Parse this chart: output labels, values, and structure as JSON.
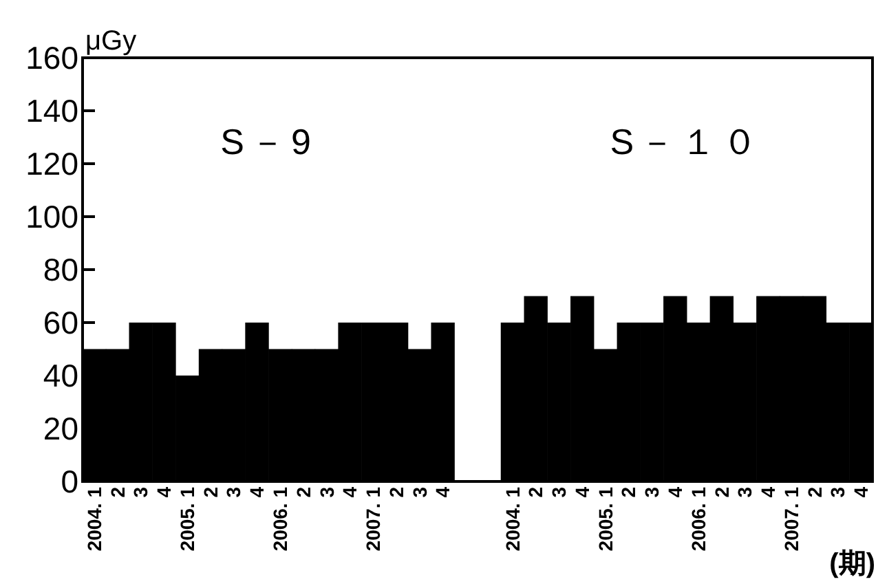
{
  "chart_data": {
    "type": "bar",
    "ylabel": "μGy",
    "xlabel": "(期)",
    "annotations": [
      "S－9",
      "S－１０"
    ],
    "categories": [
      "2004. 1",
      "2",
      "3",
      "4",
      "2005. 1",
      "2",
      "3",
      "4",
      "2006. 1",
      "2",
      "3",
      "4",
      "2007. 1",
      "2",
      "3",
      "4",
      null,
      null,
      "2004. 1",
      "2",
      "3",
      "4",
      "2005. 1",
      "2",
      "3",
      "4",
      "2006. 1",
      "2",
      "3",
      "4",
      "2007. 1",
      "2",
      "3",
      "4"
    ],
    "series": [
      {
        "color": "#000000",
        "values": [
          50,
          50,
          60,
          60,
          40,
          50,
          50,
          60,
          50,
          50,
          50,
          60,
          60,
          60,
          50,
          60,
          null,
          null,
          60,
          70,
          60,
          70,
          50,
          60,
          60,
          70,
          60,
          70,
          60,
          70,
          70,
          70,
          60,
          60
        ]
      }
    ],
    "ylim": [
      0,
      160
    ],
    "yticks": [
      0,
      20,
      40,
      60,
      80,
      100,
      120,
      140,
      160
    ],
    "grid": false
  }
}
